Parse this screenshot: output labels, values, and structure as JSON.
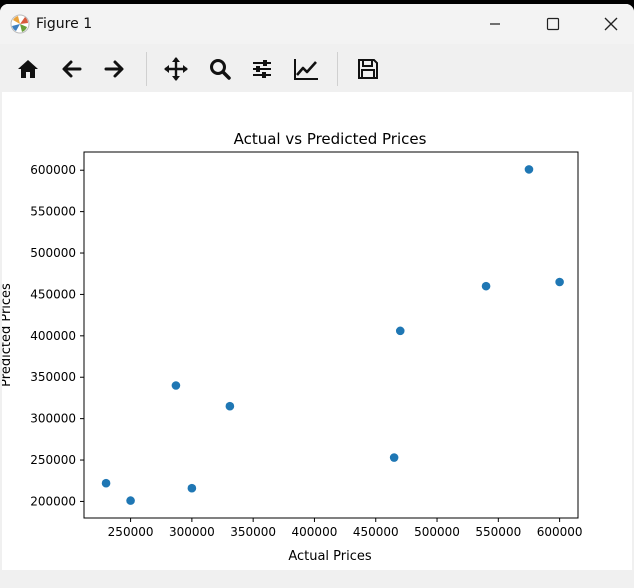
{
  "window": {
    "title": "Figure 1",
    "controls": [
      "minimize",
      "maximize",
      "close"
    ]
  },
  "toolbar": {
    "buttons": [
      {
        "name": "home",
        "icon": "home-icon"
      },
      {
        "name": "back",
        "icon": "arrow-left-icon"
      },
      {
        "name": "forward",
        "icon": "arrow-right-icon"
      },
      {
        "name": "pan",
        "icon": "move-icon"
      },
      {
        "name": "zoom",
        "icon": "magnifier-icon"
      },
      {
        "name": "configure-subplots",
        "icon": "sliders-icon"
      },
      {
        "name": "edit-axis",
        "icon": "line-chart-icon"
      },
      {
        "name": "save",
        "icon": "floppy-disk-icon"
      }
    ]
  },
  "colors": {
    "marker": "#1f77b4",
    "background": "#ffffff",
    "chrome": "#f0f0f0"
  },
  "chart_data": {
    "type": "scatter",
    "title": "Actual vs Predicted Prices",
    "xlabel": "Actual Prices",
    "ylabel": "Predicted Prices",
    "xlim": [
      212000,
      615000
    ],
    "ylim": [
      180000,
      622000
    ],
    "xticks": [
      250000,
      300000,
      350000,
      400000,
      450000,
      500000,
      550000,
      600000
    ],
    "xtick_labels": [
      "250000",
      "300000",
      "350000",
      "400000",
      "450000",
      "500000",
      "550000",
      "600000"
    ],
    "yticks": [
      200000,
      250000,
      300000,
      350000,
      400000,
      450000,
      500000,
      550000,
      600000
    ],
    "ytick_labels": [
      "200000",
      "250000",
      "300000",
      "350000",
      "400000",
      "450000",
      "500000",
      "550000",
      "600000"
    ],
    "grid": false,
    "points": [
      {
        "x": 230000,
        "y": 222000
      },
      {
        "x": 250000,
        "y": 201000
      },
      {
        "x": 287000,
        "y": 340000
      },
      {
        "x": 300000,
        "y": 216000
      },
      {
        "x": 331000,
        "y": 315000
      },
      {
        "x": 465000,
        "y": 253000
      },
      {
        "x": 470000,
        "y": 406000
      },
      {
        "x": 540000,
        "y": 460000
      },
      {
        "x": 575000,
        "y": 601000
      },
      {
        "x": 600000,
        "y": 465000
      }
    ]
  }
}
